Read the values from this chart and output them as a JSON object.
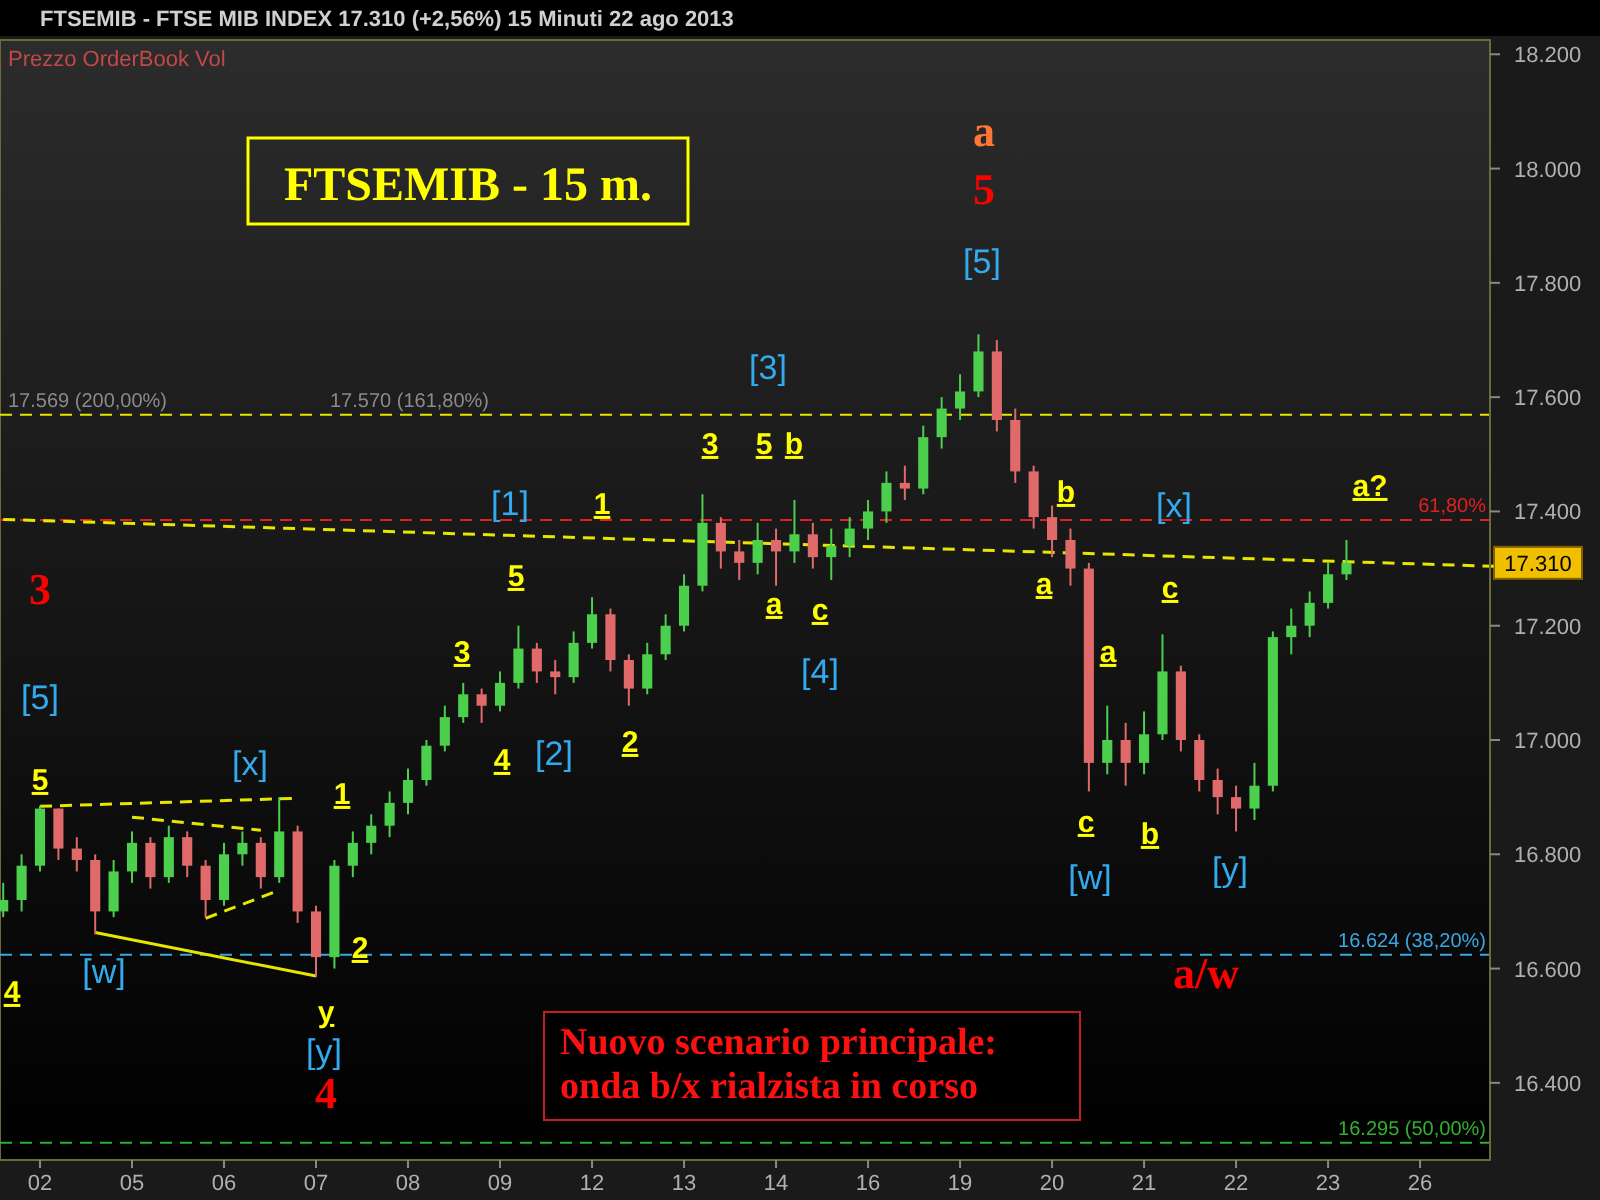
{
  "chart_data": {
    "type": "candlestick",
    "title": "FTSEMIB - 15 m.",
    "subtitle": "FTSEMIB - FTSE MIB INDEX    17.310 (+2,56%)    15 Minuti  22 ago 2013",
    "categories": [
      null,
      null,
      "02",
      null,
      null,
      null,
      null,
      "05",
      null,
      null,
      null,
      null,
      "06",
      null,
      null,
      null,
      null,
      "07",
      null,
      null,
      null,
      null,
      "08",
      null,
      null,
      null,
      null,
      "09",
      null,
      null,
      null,
      null,
      "12",
      null,
      null,
      null,
      null,
      "13",
      null,
      null,
      null,
      null,
      "14",
      null,
      null,
      null,
      null,
      "16",
      null,
      null,
      null,
      null,
      "19",
      null,
      null,
      null,
      null,
      "20",
      null,
      null,
      null,
      null,
      "21",
      null,
      null,
      null,
      null,
      "22",
      null,
      null,
      null,
      null,
      "23",
      null,
      null,
      null,
      null,
      "26",
      null,
      null,
      null,
      null
    ],
    "ohlc": [
      [
        16700,
        16750,
        16690,
        16720
      ],
      [
        16720,
        16800,
        16700,
        16780
      ],
      [
        16780,
        16885,
        16770,
        16880
      ],
      [
        16880,
        16880,
        16790,
        16810
      ],
      [
        16810,
        16830,
        16770,
        16790
      ],
      [
        16790,
        16800,
        16660,
        16700
      ],
      [
        16700,
        16790,
        16690,
        16770
      ],
      [
        16770,
        16840,
        16750,
        16820
      ],
      [
        16820,
        16830,
        16740,
        16760
      ],
      [
        16760,
        16850,
        16750,
        16830
      ],
      [
        16830,
        16840,
        16760,
        16780
      ],
      [
        16780,
        16790,
        16690,
        16720
      ],
      [
        16720,
        16820,
        16710,
        16800
      ],
      [
        16800,
        16840,
        16780,
        16820
      ],
      [
        16820,
        16830,
        16740,
        16760
      ],
      [
        16760,
        16900,
        16750,
        16840
      ],
      [
        16840,
        16850,
        16680,
        16700
      ],
      [
        16700,
        16710,
        16585,
        16620
      ],
      [
        16620,
        16790,
        16600,
        16780
      ],
      [
        16780,
        16840,
        16760,
        16820
      ],
      [
        16820,
        16870,
        16800,
        16850
      ],
      [
        16850,
        16910,
        16830,
        16890
      ],
      [
        16890,
        16950,
        16870,
        16930
      ],
      [
        16930,
        17000,
        16920,
        16990
      ],
      [
        16990,
        17060,
        16980,
        17040
      ],
      [
        17040,
        17100,
        17030,
        17080
      ],
      [
        17080,
        17090,
        17030,
        17060
      ],
      [
        17060,
        17120,
        17050,
        17100
      ],
      [
        17100,
        17200,
        17090,
        17160
      ],
      [
        17160,
        17170,
        17100,
        17120
      ],
      [
        17120,
        17140,
        17080,
        17110
      ],
      [
        17110,
        17190,
        17100,
        17170
      ],
      [
        17170,
        17250,
        17160,
        17220
      ],
      [
        17220,
        17230,
        17120,
        17140
      ],
      [
        17140,
        17150,
        17060,
        17090
      ],
      [
        17090,
        17170,
        17080,
        17150
      ],
      [
        17150,
        17220,
        17140,
        17200
      ],
      [
        17200,
        17290,
        17190,
        17270
      ],
      [
        17270,
        17430,
        17260,
        17380
      ],
      [
        17380,
        17390,
        17300,
        17330
      ],
      [
        17330,
        17350,
        17280,
        17310
      ],
      [
        17310,
        17380,
        17290,
        17350
      ],
      [
        17350,
        17370,
        17270,
        17330
      ],
      [
        17330,
        17420,
        17310,
        17360
      ],
      [
        17360,
        17380,
        17300,
        17320
      ],
      [
        17320,
        17370,
        17280,
        17340
      ],
      [
        17340,
        17390,
        17320,
        17370
      ],
      [
        17370,
        17420,
        17350,
        17400
      ],
      [
        17400,
        17470,
        17380,
        17450
      ],
      [
        17450,
        17480,
        17420,
        17440
      ],
      [
        17440,
        17550,
        17430,
        17530
      ],
      [
        17530,
        17600,
        17510,
        17580
      ],
      [
        17580,
        17640,
        17560,
        17610
      ],
      [
        17610,
        17710,
        17600,
        17680
      ],
      [
        17680,
        17700,
        17540,
        17560
      ],
      [
        17560,
        17580,
        17450,
        17470
      ],
      [
        17470,
        17480,
        17370,
        17390
      ],
      [
        17390,
        17410,
        17320,
        17350
      ],
      [
        17350,
        17370,
        17270,
        17300
      ],
      [
        17300,
        17310,
        16910,
        16960
      ],
      [
        16960,
        17060,
        16940,
        17000
      ],
      [
        17000,
        17030,
        16920,
        16960
      ],
      [
        16960,
        17050,
        16940,
        17010
      ],
      [
        17010,
        17185,
        17000,
        17120
      ],
      [
        17120,
        17130,
        16980,
        17000
      ],
      [
        17000,
        17010,
        16910,
        16930
      ],
      [
        16930,
        16950,
        16870,
        16900
      ],
      [
        16900,
        16920,
        16840,
        16880
      ],
      [
        16880,
        16960,
        16860,
        16920
      ],
      [
        16920,
        17190,
        16910,
        17180
      ],
      [
        17180,
        17230,
        17150,
        17200
      ],
      [
        17200,
        17260,
        17180,
        17240
      ],
      [
        17240,
        17310,
        17230,
        17290
      ],
      [
        17290,
        17350,
        17280,
        17310
      ],
      null,
      null,
      null,
      null,
      null,
      null,
      null,
      null
    ],
    "series": [
      {
        "type": "line",
        "color": "#e6e600",
        "line_style": "dashed",
        "values": [
          17386,
          null,
          null,
          null,
          null,
          null,
          null,
          null,
          null,
          null,
          null,
          null,
          null,
          null,
          null,
          null,
          null,
          null,
          null,
          null,
          null,
          null,
          null,
          null,
          null,
          null,
          null,
          null,
          null,
          null,
          null,
          null,
          null,
          null,
          null,
          null,
          null,
          null,
          null,
          null,
          null,
          null,
          null,
          null,
          null,
          null,
          null,
          null,
          null,
          null,
          null,
          null,
          null,
          null,
          null,
          null,
          null,
          null,
          null,
          null,
          null,
          null,
          null,
          null,
          null,
          null,
          null,
          null,
          null,
          null,
          null,
          null,
          null,
          null,
          null,
          null,
          null,
          null,
          null,
          null,
          null,
          17304
        ]
      },
      {
        "type": "line",
        "color": "#e6e600",
        "line_style": "dashed",
        "values": [
          null,
          null,
          16884,
          null,
          null,
          null,
          null,
          null,
          null,
          null,
          null,
          null,
          null,
          null,
          null,
          null,
          16898,
          null,
          null,
          null,
          null,
          null,
          null,
          null,
          null,
          null,
          null,
          null,
          null,
          null,
          null,
          null,
          null,
          null,
          null,
          null,
          null,
          null,
          null,
          null,
          null,
          null,
          null,
          null,
          null,
          null,
          null,
          null,
          null,
          null,
          null,
          null,
          null,
          null,
          null,
          null,
          null,
          null,
          null,
          null,
          null,
          null,
          null,
          null,
          null,
          null,
          null,
          null,
          null,
          null,
          null,
          null,
          null,
          null,
          null,
          null,
          null,
          null,
          null,
          null,
          null,
          null
        ]
      },
      {
        "type": "line",
        "color": "#e6e600",
        "line_style": "dashed",
        "values": [
          null,
          null,
          null,
          null,
          null,
          null,
          null,
          16865,
          null,
          null,
          null,
          null,
          null,
          null,
          16842,
          null,
          null,
          null,
          null,
          null,
          null,
          null,
          null,
          null,
          null,
          null,
          null,
          null,
          null,
          null,
          null,
          null,
          null,
          null,
          null,
          null,
          null,
          null,
          null,
          null,
          null,
          null,
          null,
          null,
          null,
          null,
          null,
          null,
          null,
          null,
          null,
          null,
          null,
          null,
          null,
          null,
          null,
          null,
          null,
          null,
          null,
          null,
          null,
          null,
          null,
          null,
          null,
          null,
          null,
          null,
          null,
          null,
          null,
          null,
          null,
          null,
          null,
          null,
          null,
          null,
          null,
          null
        ]
      },
      {
        "type": "line",
        "color": "#e6e600",
        "line_style": "dashed",
        "values": [
          null,
          null,
          null,
          null,
          null,
          null,
          null,
          null,
          null,
          null,
          null,
          16688,
          null,
          null,
          null,
          16737,
          null,
          null,
          null,
          null,
          null,
          null,
          null,
          null,
          null,
          null,
          null,
          null,
          null,
          null,
          null,
          null,
          null,
          null,
          null,
          null,
          null,
          null,
          null,
          null,
          null,
          null,
          null,
          null,
          null,
          null,
          null,
          null,
          null,
          null,
          null,
          null,
          null,
          null,
          null,
          null,
          null,
          null,
          null,
          null,
          null,
          null,
          null,
          null,
          null,
          null,
          null,
          null,
          null,
          null,
          null,
          null,
          null,
          null,
          null,
          null,
          null,
          null,
          null,
          null,
          null,
          null
        ]
      },
      {
        "type": "line",
        "color": "#e6e600",
        "line_style": "solid",
        "values": [
          null,
          null,
          null,
          null,
          null,
          16663,
          null,
          null,
          null,
          null,
          null,
          null,
          null,
          null,
          null,
          null,
          null,
          16587,
          null,
          null,
          null,
          null,
          null,
          null,
          null,
          null,
          null,
          null,
          null,
          null,
          null,
          null,
          null,
          null,
          null,
          null,
          null,
          null,
          null,
          null,
          null,
          null,
          null,
          null,
          null,
          null,
          null,
          null,
          null,
          null,
          null,
          null,
          null,
          null,
          null,
          null,
          null,
          null,
          null,
          null,
          null,
          null,
          null,
          null,
          null,
          null,
          null,
          null,
          null,
          null,
          null,
          null,
          null,
          null,
          null,
          null,
          null,
          null,
          null,
          null,
          null,
          null
        ]
      }
    ],
    "ylim": [
      16265,
      18225
    ],
    "yticks": [
      {
        "value": 16400,
        "label": "16.400"
      },
      {
        "value": 16600,
        "label": "16.600"
      },
      {
        "value": 16800,
        "label": "16.800"
      },
      {
        "value": 17000,
        "label": "17.000"
      },
      {
        "value": 17200,
        "label": "17.200"
      },
      {
        "value": 17400,
        "label": "17.400"
      },
      {
        "value": 17600,
        "label": "17.600"
      },
      {
        "value": 17800,
        "label": "17.800"
      },
      {
        "value": 18000,
        "label": "18.000"
      },
      {
        "value": 18200,
        "label": "18.200"
      }
    ],
    "ref_lines": [
      {
        "axis": "y",
        "value": 17569,
        "label": "17.569 (200,00%)",
        "color": "#e6e600",
        "line_style": "dashed"
      },
      {
        "axis": "y",
        "value": 17385,
        "color": "#e02020",
        "line_style": "dashed"
      },
      {
        "axis": "y",
        "value": 16624,
        "label": "16.624 (38,20%)",
        "color": "#3aa8e0",
        "line_style": "dashed"
      },
      {
        "axis": "y",
        "value": 16295,
        "label": "16.295 (50,00%)",
        "color": "#30b030",
        "line_style": "dashed"
      }
    ],
    "annotations": [
      "Prezzo OrderBook Vol",
      "Nuovo scenario principale:\nonda b/x rialzista in corso",
      {
        "text": "17.310",
        "y": 17310
      },
      {
        "text": "17.570 (161,80%)",
        "y": 17569
      },
      {
        "text": "61,80%",
        "y": 17385
      },
      "4",
      "3",
      "[5]",
      "5",
      "[w]",
      "[x]",
      "1",
      "2",
      "y",
      "[y]",
      "4",
      "3",
      "4",
      "5",
      "[2]",
      "[1]",
      "1",
      "2",
      "3",
      "5",
      "b",
      "[3]",
      "a",
      "c",
      "[4]",
      "[5]",
      "5",
      "a",
      "b",
      "a",
      "[x]",
      "c",
      "a",
      "c",
      "[w]",
      "b",
      "[y]",
      "a?",
      "a/w"
    ]
  }
}
